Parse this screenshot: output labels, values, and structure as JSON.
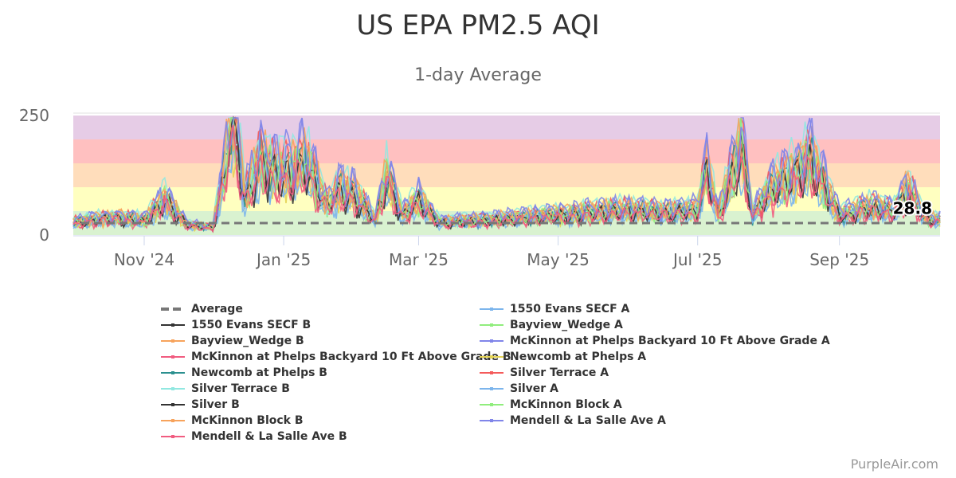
{
  "chart_data": {
    "type": "line",
    "title": "US EPA PM2.5 AQI",
    "subtitle": "1-day Average",
    "ylim": [
      0,
      250
    ],
    "y_ticks": [
      0,
      250
    ],
    "x_ticks": [
      "Nov '24",
      "Jan '25",
      "Mar '25",
      "May '25",
      "Jul '25",
      "Sep '25"
    ],
    "x_range": [
      "2024-10-01",
      "2025-10-15"
    ],
    "bands": [
      {
        "from": 0,
        "to": 50,
        "color": "#d9f2d0"
      },
      {
        "from": 50,
        "to": 100,
        "color": "#ffffc0"
      },
      {
        "from": 100,
        "to": 150,
        "color": "#ffddbb"
      },
      {
        "from": 150,
        "to": 200,
        "color": "#ffc0c0"
      },
      {
        "from": 200,
        "to": 250,
        "color": "#e6cce6"
      }
    ],
    "last_value_label": "28.8",
    "average": {
      "name": "Average",
      "value": 25,
      "color": "#777777"
    },
    "key_points": [
      {
        "date": "2024-10-01",
        "value": 25
      },
      {
        "date": "2024-10-10",
        "value": 30
      },
      {
        "date": "2024-10-20",
        "value": 35
      },
      {
        "date": "2024-11-01",
        "value": 28
      },
      {
        "date": "2024-11-10",
        "value": 70
      },
      {
        "date": "2024-11-20",
        "value": 20
      },
      {
        "date": "2024-12-01",
        "value": 15
      },
      {
        "date": "2024-12-05",
        "value": 100
      },
      {
        "date": "2024-12-10",
        "value": 230
      },
      {
        "date": "2024-12-15",
        "value": 75
      },
      {
        "date": "2024-12-22",
        "value": 150
      },
      {
        "date": "2024-12-27",
        "value": 125
      },
      {
        "date": "2025-01-05",
        "value": 125
      },
      {
        "date": "2025-01-10",
        "value": 150
      },
      {
        "date": "2025-01-20",
        "value": 60
      },
      {
        "date": "2025-01-25",
        "value": 90
      },
      {
        "date": "2025-02-01",
        "value": 80
      },
      {
        "date": "2025-02-10",
        "value": 30
      },
      {
        "date": "2025-02-15",
        "value": 115
      },
      {
        "date": "2025-02-22",
        "value": 40
      },
      {
        "date": "2025-03-01",
        "value": 70
      },
      {
        "date": "2025-03-10",
        "value": 25
      },
      {
        "date": "2025-04-01",
        "value": 30
      },
      {
        "date": "2025-04-15",
        "value": 35
      },
      {
        "date": "2025-05-01",
        "value": 40
      },
      {
        "date": "2025-05-15",
        "value": 45
      },
      {
        "date": "2025-06-01",
        "value": 50
      },
      {
        "date": "2025-06-15",
        "value": 45
      },
      {
        "date": "2025-07-01",
        "value": 50
      },
      {
        "date": "2025-07-05",
        "value": 130
      },
      {
        "date": "2025-07-10",
        "value": 40
      },
      {
        "date": "2025-07-20",
        "value": 175
      },
      {
        "date": "2025-07-25",
        "value": 40
      },
      {
        "date": "2025-08-01",
        "value": 85
      },
      {
        "date": "2025-08-20",
        "value": 145
      },
      {
        "date": "2025-09-01",
        "value": 40
      },
      {
        "date": "2025-09-15",
        "value": 55
      },
      {
        "date": "2025-09-25",
        "value": 50
      },
      {
        "date": "2025-10-01",
        "value": 90
      },
      {
        "date": "2025-10-05",
        "value": 60
      },
      {
        "date": "2025-10-10",
        "value": 30
      }
    ],
    "series": [
      {
        "name": "Average",
        "color": "#777777"
      },
      {
        "name": "1550 Evans SECF A",
        "color": "#7cb5ec"
      },
      {
        "name": "1550 Evans SECF B",
        "color": "#333333"
      },
      {
        "name": "Bayview_Wedge A",
        "color": "#90ed7d"
      },
      {
        "name": "Bayview_Wedge B",
        "color": "#f7a35c"
      },
      {
        "name": "McKinnon at Phelps Backyard 10 Ft Above Grade A",
        "color": "#8085e9"
      },
      {
        "name": "McKinnon at Phelps Backyard 10 Ft Above Grade B",
        "color": "#f15c80"
      },
      {
        "name": "Newcomb at Phelps A",
        "color": "#e4d354"
      },
      {
        "name": "Newcomb at Phelps B",
        "color": "#2b908f"
      },
      {
        "name": "Silver Terrace A",
        "color": "#f45b5b"
      },
      {
        "name": "Silver Terrace B",
        "color": "#91e8e1"
      },
      {
        "name": "Silver A",
        "color": "#7cb5ec"
      },
      {
        "name": "Silver B",
        "color": "#333333"
      },
      {
        "name": "McKinnon Block A",
        "color": "#90ed7d"
      },
      {
        "name": "McKinnon Block B",
        "color": "#f7a35c"
      },
      {
        "name": "Mendell & La Salle Ave A",
        "color": "#8085e9"
      },
      {
        "name": "Mendell & La Salle Ave B",
        "color": "#f15c80"
      }
    ]
  },
  "credit": "PurpleAir.com"
}
